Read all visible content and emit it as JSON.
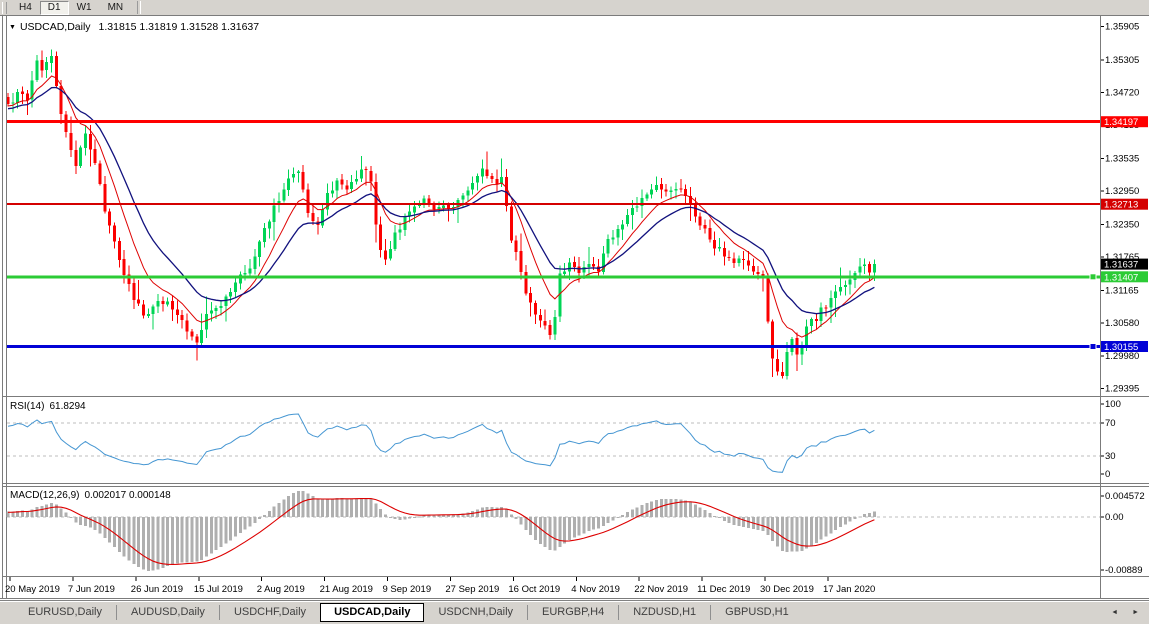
{
  "colors": {
    "chrome": "#d6d3ce",
    "chart_bg": "#ffffff",
    "frame": "#7b7b7b",
    "axis_text": "#000000",
    "bull": "#00D455",
    "bear": "#FB0000",
    "dashed": "#BDBDBD",
    "macd_hist": "#AFAFAF",
    "macd_signal": "#DD0000"
  },
  "toolbar": {
    "buttons": [
      {
        "label": "H4",
        "active": false
      },
      {
        "label": "D1",
        "active": true
      },
      {
        "label": "W1",
        "active": false
      },
      {
        "label": "MN",
        "active": false
      }
    ]
  },
  "chart": {
    "dropdown_icon": "▼",
    "title_symbol": "USDCAD,Daily",
    "title_ohlc": "1.31815 1.31819 1.31528 1.31637"
  },
  "chart_data": [
    {
      "type": "candlestick",
      "symbol": "USDCAD",
      "timeframe": "Daily",
      "ohlc_current": {
        "open": 1.31815,
        "high": 1.31819,
        "low": 1.31528,
        "close": 1.31637
      },
      "bar_count": 180,
      "label_every_bars": 13,
      "x_labels": [
        "20 May 2019",
        "7 Jun 2019",
        "26 Jun 2019",
        "15 Jul 2019",
        "2 Aug 2019",
        "21 Aug 2019",
        "9 Sep 2019",
        "27 Sep 2019",
        "16 Oct 2019",
        "4 Nov 2019",
        "22 Nov 2019",
        "11 Dec 2019",
        "30 Dec 2019",
        "17 Jan 2020"
      ],
      "ylim": [
        1.293,
        1.3608
      ],
      "y_ticks": [
        "1.35905",
        "1.35305",
        "1.34720",
        "1.34135",
        "1.33535",
        "1.32950",
        "1.32350",
        "1.31765",
        "1.31165",
        "1.30580",
        "1.29980",
        "1.29395"
      ],
      "horizontal_lines": [
        {
          "price": 1.34197,
          "label": "1.34197",
          "color": "#FF0000",
          "width": 3,
          "handle": false
        },
        {
          "price": 1.32713,
          "label": "1.32713",
          "color": "#D40000",
          "width": 2,
          "handle": false
        },
        {
          "price": 1.31407,
          "label": "1.31407",
          "color": "#2BCB35",
          "width": 3,
          "handle": true
        },
        {
          "price": 1.30155,
          "label": "1.30155",
          "color": "#0202D6",
          "width": 3,
          "handle": true
        }
      ],
      "current_price_marker": {
        "price": 1.31637,
        "label": "1.31637",
        "color": "#000000"
      },
      "moving_averages": [
        {
          "name": "fast",
          "period": 9,
          "color": "#DE0202"
        },
        {
          "name": "slow",
          "period": 18,
          "color": "#12127E"
        }
      ],
      "close_anchors": [
        [
          0,
          1.3452
        ],
        [
          2,
          1.347
        ],
        [
          4,
          1.3462
        ],
        [
          6,
          1.3525
        ],
        [
          7,
          1.351
        ],
        [
          9,
          1.354
        ],
        [
          10,
          1.348
        ],
        [
          11,
          1.3435
        ],
        [
          13,
          1.337
        ],
        [
          14,
          1.334
        ],
        [
          16,
          1.34
        ],
        [
          18,
          1.3348
        ],
        [
          20,
          1.3262
        ],
        [
          22,
          1.321
        ],
        [
          24,
          1.3142
        ],
        [
          26,
          1.3105
        ],
        [
          28,
          1.307
        ],
        [
          30,
          1.3088
        ],
        [
          33,
          1.3102
        ],
        [
          35,
          1.3072
        ],
        [
          37,
          1.3048
        ],
        [
          39,
          1.3028
        ],
        [
          41,
          1.3068
        ],
        [
          44,
          1.3088
        ],
        [
          47,
          1.3128
        ],
        [
          50,
          1.3162
        ],
        [
          53,
          1.3222
        ],
        [
          56,
          1.3282
        ],
        [
          58,
          1.332
        ],
        [
          60,
          1.3335
        ],
        [
          62,
          1.3252
        ],
        [
          64,
          1.3232
        ],
        [
          66,
          1.3288
        ],
        [
          68,
          1.331
        ],
        [
          70,
          1.3292
        ],
        [
          72,
          1.3322
        ],
        [
          74,
          1.3338
        ],
        [
          75,
          1.3312
        ],
        [
          76,
          1.3232
        ],
        [
          77,
          1.3185
        ],
        [
          78,
          1.3172
        ],
        [
          80,
          1.3222
        ],
        [
          82,
          1.3242
        ],
        [
          84,
          1.3266
        ],
        [
          86,
          1.3286
        ],
        [
          88,
          1.3262
        ],
        [
          90,
          1.3272
        ],
        [
          92,
          1.326
        ],
        [
          94,
          1.3292
        ],
        [
          96,
          1.3312
        ],
        [
          98,
          1.333
        ],
        [
          100,
          1.3312
        ],
        [
          102,
          1.3316
        ],
        [
          103,
          1.3272
        ],
        [
          104,
          1.3208
        ],
        [
          105,
          1.3182
        ],
        [
          107,
          1.3112
        ],
        [
          109,
          1.3076
        ],
        [
          111,
          1.3056
        ],
        [
          112,
          1.3042
        ],
        [
          113,
          1.3062
        ],
        [
          114,
          1.3142
        ],
        [
          116,
          1.3172
        ],
        [
          118,
          1.315
        ],
        [
          120,
          1.3166
        ],
        [
          122,
          1.3154
        ],
        [
          124,
          1.3206
        ],
        [
          126,
          1.3226
        ],
        [
          128,
          1.3246
        ],
        [
          130,
          1.327
        ],
        [
          132,
          1.3288
        ],
        [
          134,
          1.33
        ],
        [
          136,
          1.3294
        ],
        [
          138,
          1.3306
        ],
        [
          140,
          1.329
        ],
        [
          142,
          1.3248
        ],
        [
          144,
          1.3226
        ],
        [
          146,
          1.3196
        ],
        [
          148,
          1.318
        ],
        [
          150,
          1.3162
        ],
        [
          152,
          1.3172
        ],
        [
          154,
          1.315
        ],
        [
          156,
          1.3136
        ],
        [
          157,
          1.3062
        ],
        [
          158,
          1.2996
        ],
        [
          159,
          1.2976
        ],
        [
          160,
          1.2962
        ],
        [
          161,
          1.3012
        ],
        [
          162,
          1.3032
        ],
        [
          163,
          1.2998
        ],
        [
          164,
          1.3016
        ],
        [
          165,
          1.3046
        ],
        [
          166,
          1.3062
        ],
        [
          167,
          1.3056
        ],
        [
          168,
          1.308
        ],
        [
          170,
          1.3102
        ],
        [
          172,
          1.3122
        ],
        [
          174,
          1.3142
        ],
        [
          176,
          1.3162
        ],
        [
          177,
          1.3168
        ],
        [
          178,
          1.3148
        ],
        [
          179,
          1.31637
        ]
      ]
    },
    {
      "type": "line",
      "indicator": "RSI",
      "label": "RSI(14)",
      "current_value": "61.8294",
      "period": 14,
      "color": "#4596D2",
      "range": [
        0,
        100
      ],
      "y_ticks": [
        100,
        70,
        30,
        0
      ],
      "dashed_levels": [
        70,
        30
      ]
    },
    {
      "type": "macd",
      "indicator": "MACD",
      "label": "MACD(12,26,9)",
      "params": [
        12,
        26,
        9
      ],
      "current_values": "0.002017 0.000148",
      "y_tick_labels": [
        "0.004572",
        "0.00",
        "-0.00889"
      ]
    }
  ],
  "tabs": {
    "items": [
      {
        "label": "EURUSD,Daily",
        "active": false
      },
      {
        "label": "AUDUSD,Daily",
        "active": false
      },
      {
        "label": "USDCHF,Daily",
        "active": false
      },
      {
        "label": "USDCAD,Daily",
        "active": true
      },
      {
        "label": "USDCNH,Daily",
        "active": false
      },
      {
        "label": "EURGBP,H4",
        "active": false
      },
      {
        "label": "NZDUSD,H1",
        "active": false
      },
      {
        "label": "GBPUSD,H1",
        "active": false
      }
    ],
    "scroll_left_icon": "◄",
    "scroll_right_icon": "►"
  }
}
